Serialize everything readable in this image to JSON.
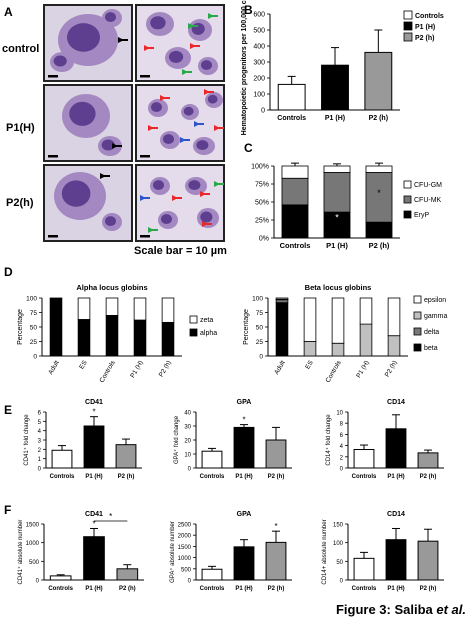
{
  "panelA": {
    "letter": "A",
    "rows": [
      "control",
      "P1(H)",
      "P2(h)"
    ],
    "scale_bar": "Scale bar = 10 µm",
    "colors": {
      "frame": "#222222",
      "bg1": "#d9d3e3",
      "bg2": "#e4dcea",
      "cell": "#a488c2",
      "nucleus": "#5e3f8f",
      "red": "#e8282b",
      "green": "#2aa84a",
      "blue": "#2e56c9",
      "black": "#000000"
    }
  },
  "caption": {
    "prefix": "Figure 3: Saliba ",
    "suffix": "et al."
  },
  "chart_data": [
    {
      "panel": "B",
      "type": "bar",
      "categories": [
        "Controls",
        "P1 (H)",
        "P2 (h)"
      ],
      "values": [
        160,
        280,
        360
      ],
      "errors": [
        50,
        110,
        140
      ],
      "ylabel": "Hematopoietic progenitors per 100,000 cells",
      "ylim": [
        0,
        600
      ],
      "yticks": [
        0,
        100,
        200,
        300,
        400,
        500,
        600
      ],
      "legend": [
        {
          "name": "Controls",
          "color": "#ffffff"
        },
        {
          "name": "P1 (H)",
          "color": "#000000"
        },
        {
          "name": "P2 (h)",
          "color": "#999999"
        }
      ],
      "legend_position": "top-right"
    },
    {
      "panel": "C",
      "type": "bar",
      "stacked": true,
      "categories": [
        "Controls",
        "P1 (H)",
        "P2 (h)"
      ],
      "series": [
        {
          "name": "EryP",
          "values": [
            46,
            36,
            22
          ],
          "color": "#000000"
        },
        {
          "name": "CFU-MK",
          "values": [
            37,
            55,
            69
          ],
          "color": "#777777"
        },
        {
          "name": "CFU-GM",
          "values": [
            17,
            9,
            9
          ],
          "color": "#ffffff"
        }
      ],
      "ylim": [
        0,
        100
      ],
      "yticks": [
        "0%",
        "25%",
        "50%",
        "75%",
        "100%"
      ],
      "annotations": [
        "*",
        "*"
      ],
      "legend_position": "right"
    },
    {
      "panel": "D",
      "type": "bar",
      "stacked": true,
      "title": "Alpha locus globins",
      "ylabel": "Percentage",
      "categories": [
        "Adult",
        "ES",
        "Controls",
        "P1 (H)",
        "P2 (h)"
      ],
      "series": [
        {
          "name": "alpha",
          "values": [
            100,
            63,
            70,
            62,
            58
          ],
          "color": "#000000"
        },
        {
          "name": "zeta",
          "values": [
            0,
            37,
            30,
            38,
            42
          ],
          "color": "#ffffff"
        }
      ],
      "ylim": [
        0,
        100
      ],
      "yticks": [
        0,
        25,
        50,
        75,
        100
      ],
      "legend_position": "right"
    },
    {
      "panel": "D",
      "type": "bar",
      "stacked": true,
      "title": "Beta locus globins",
      "ylabel": "Percentage",
      "categories": [
        "Adult",
        "ES",
        "Controls",
        "P1 (H)",
        "P2 (h)"
      ],
      "series": [
        {
          "name": "beta",
          "values": [
            92,
            0,
            0,
            0,
            0
          ],
          "color": "#000000"
        },
        {
          "name": "delta",
          "values": [
            5,
            0,
            0,
            0,
            0
          ],
          "color": "#777777"
        },
        {
          "name": "gamma",
          "values": [
            1,
            25,
            22,
            55,
            35
          ],
          "color": "#c0c0c0"
        },
        {
          "name": "epsilon",
          "values": [
            2,
            75,
            78,
            45,
            65
          ],
          "color": "#ffffff"
        }
      ],
      "ylim": [
        0,
        100
      ],
      "yticks": [
        0,
        25,
        50,
        75,
        100
      ],
      "legend_position": "right"
    },
    {
      "panel": "E",
      "type": "bar",
      "title": "CD41",
      "ylabel": "CD41⁺ fold change",
      "categories": [
        "Controls",
        "P1 (H)",
        "P2 (h)"
      ],
      "values": [
        1.9,
        4.5,
        2.5
      ],
      "errors": [
        0.5,
        1.0,
        0.6
      ],
      "ylim": [
        0,
        6
      ],
      "yticks": [
        0,
        1,
        2,
        3,
        4,
        5,
        6
      ],
      "annotations": [
        "*"
      ]
    },
    {
      "panel": "E",
      "type": "bar",
      "title": "GPA",
      "ylabel": "GPA⁺ fold change",
      "categories": [
        "Controls",
        "P1 (H)",
        "P2 (h)"
      ],
      "values": [
        12,
        29,
        20
      ],
      "errors": [
        2,
        2,
        9
      ],
      "ylim": [
        0,
        40
      ],
      "yticks": [
        0,
        10,
        20,
        30,
        40
      ],
      "annotations": [
        "*"
      ]
    },
    {
      "panel": "E",
      "type": "bar",
      "title": "CD14",
      "ylabel": "CD14⁺ fold change",
      "categories": [
        "Controls",
        "P1 (H)",
        "P2 (h)"
      ],
      "values": [
        3.3,
        7.0,
        2.7
      ],
      "errors": [
        0.8,
        2.5,
        0.5
      ],
      "ylim": [
        0,
        10
      ],
      "yticks": [
        0,
        2,
        4,
        6,
        8,
        10
      ]
    },
    {
      "panel": "F",
      "type": "bar",
      "title": "CD41",
      "ylabel": "CD41⁺ absolute number",
      "categories": [
        "Controls",
        "P1 (H)",
        "P2 (h)"
      ],
      "values": [
        110,
        1160,
        300
      ],
      "errors": [
        30,
        220,
        110
      ],
      "ylim": [
        0,
        1500
      ],
      "yticks": [
        0,
        500,
        1000,
        1500
      ],
      "annotations": [
        "*",
        "*"
      ]
    },
    {
      "panel": "F",
      "type": "bar",
      "title": "GPA",
      "ylabel": "GPA⁺ absolute number",
      "categories": [
        "Controls",
        "P1 (H)",
        "P2 (h)"
      ],
      "values": [
        480,
        1480,
        1680
      ],
      "errors": [
        130,
        320,
        500
      ],
      "ylim": [
        0,
        2500
      ],
      "yticks": [
        0,
        500,
        1000,
        1500,
        2000,
        2500
      ],
      "annotations": [
        "*"
      ]
    },
    {
      "panel": "F",
      "type": "bar",
      "title": "CD14",
      "ylabel": "CD14+ absolute number",
      "categories": [
        "Controls",
        "P1 (H)",
        "P2 (h)"
      ],
      "values": [
        58,
        108,
        104
      ],
      "errors": [
        16,
        30,
        32
      ],
      "ylim": [
        0,
        150
      ],
      "yticks": [
        0,
        50,
        100,
        150
      ]
    }
  ]
}
